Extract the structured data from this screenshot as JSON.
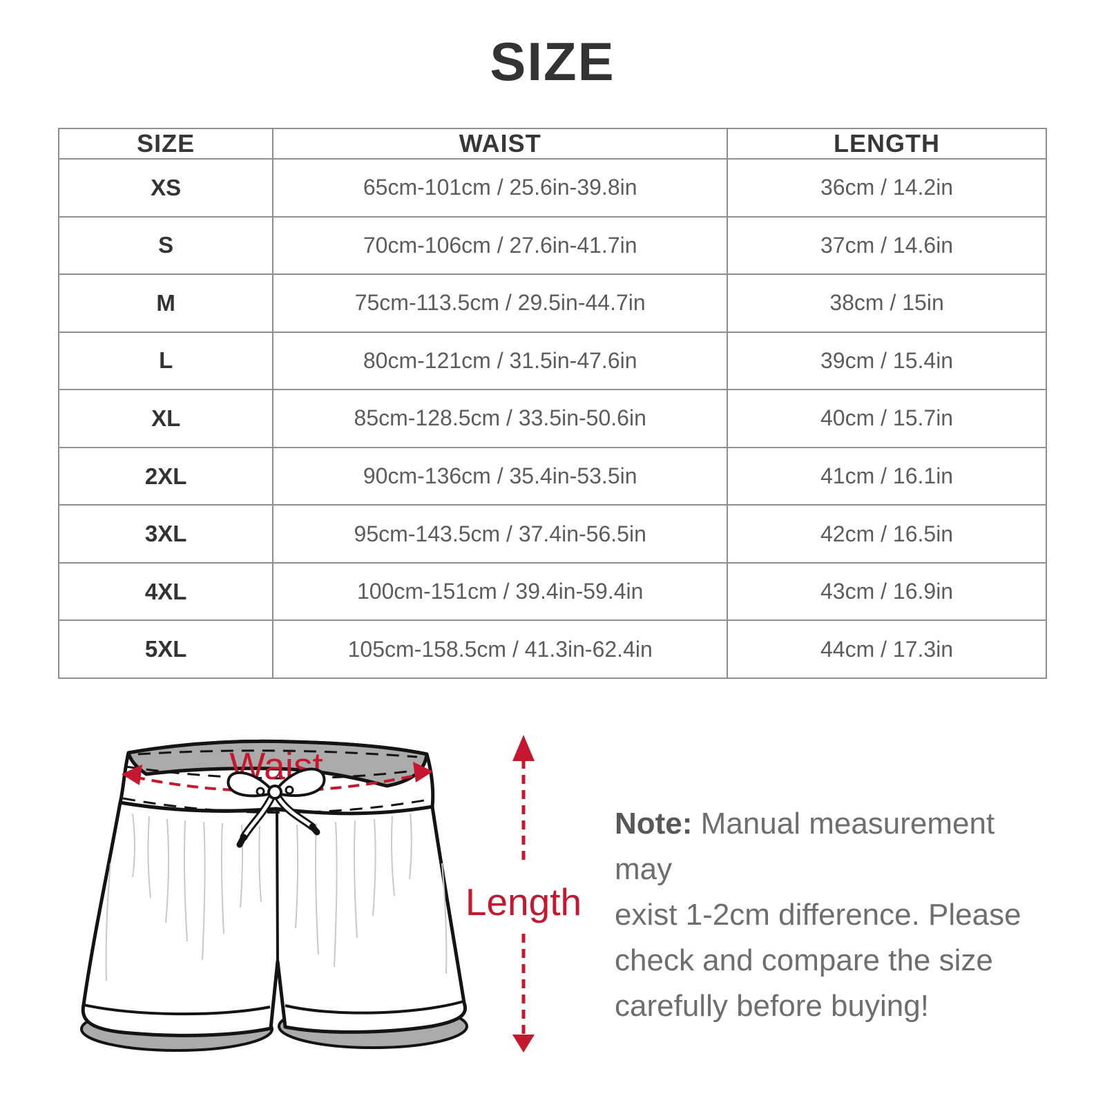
{
  "page": {
    "title": "SIZE"
  },
  "colors": {
    "accent_red": "#C5182E",
    "table_border": "#8e8e8e",
    "header_text": "#373737",
    "cell_text": "#5c5c5c",
    "illustration_gray": "#ababab",
    "note_text": "#6e6e6e"
  },
  "table": {
    "headers": [
      "SIZE",
      "WAIST",
      "LENGTH"
    ],
    "rows": [
      {
        "size": "XS",
        "waist": "65cm-101cm / 25.6in-39.8in",
        "length": "36cm / 14.2in"
      },
      {
        "size": "S",
        "waist": "70cm-106cm / 27.6in-41.7in",
        "length": "37cm / 14.6in"
      },
      {
        "size": "M",
        "waist": "75cm-113.5cm / 29.5in-44.7in",
        "length": "38cm / 15in"
      },
      {
        "size": "L",
        "waist": "80cm-121cm / 31.5in-47.6in",
        "length": "39cm / 15.4in"
      },
      {
        "size": "XL",
        "waist": "85cm-128.5cm / 33.5in-50.6in",
        "length": "40cm / 15.7in"
      },
      {
        "size": "2XL",
        "waist": "90cm-136cm / 35.4in-53.5in",
        "length": "41cm / 16.1in"
      },
      {
        "size": "3XL",
        "waist": "95cm-143.5cm / 37.4in-56.5in",
        "length": "42cm / 16.5in"
      },
      {
        "size": "4XL",
        "waist": "100cm-151cm / 39.4in-59.4in",
        "length": "43cm / 16.9in"
      },
      {
        "size": "5XL",
        "waist": "105cm-158.5cm / 41.3in-62.4in",
        "length": "44cm / 17.3in"
      }
    ]
  },
  "diagram": {
    "waist_label": "Waist",
    "length_label": "Length"
  },
  "note": {
    "label": "Note:",
    "lines": [
      "Manual measurement may",
      "exist 1-2cm difference. Please",
      "check and compare the size",
      "carefully before buying!"
    ]
  }
}
